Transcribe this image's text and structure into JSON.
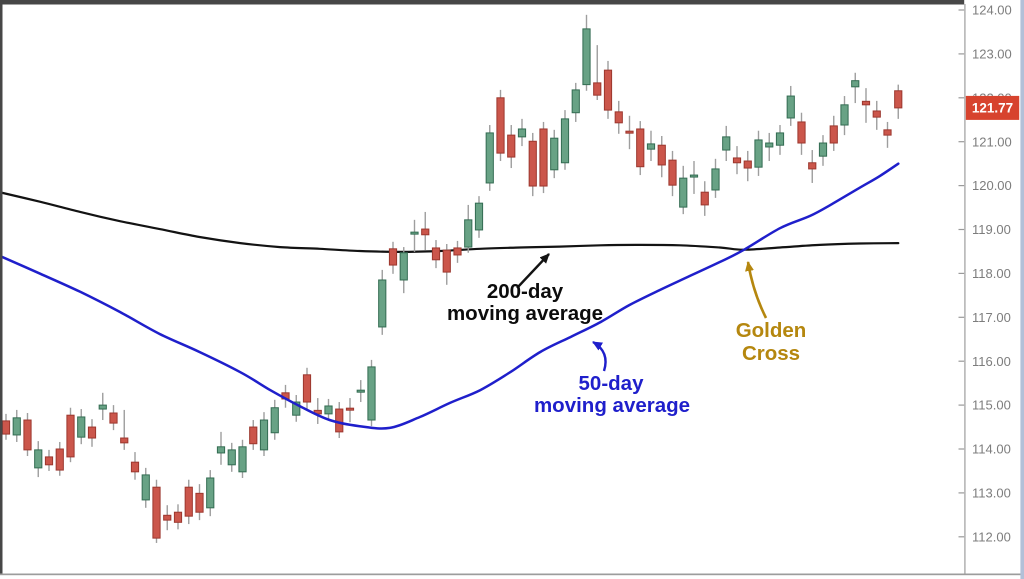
{
  "figure": {
    "description": "Candlestick price chart showing a Golden Cross where the 50-day moving average crosses above the 200-day moving average"
  },
  "chart_data": {
    "type": "candlestick",
    "grid": false,
    "y_axis": {
      "side": "right",
      "min": 111.0,
      "max": 124.15,
      "ticks": [
        {
          "label": "124.00",
          "value": 124
        },
        {
          "label": "123.00",
          "value": 123
        },
        {
          "label": "122.00",
          "value": 122
        },
        {
          "label": "121.00",
          "value": 121
        },
        {
          "label": "120.00",
          "value": 120
        },
        {
          "label": "119.00",
          "value": 119
        },
        {
          "label": "118.00",
          "value": 118
        },
        {
          "label": "117.00",
          "value": 117
        },
        {
          "label": "116.00",
          "value": 116
        },
        {
          "label": "115.00",
          "value": 115
        },
        {
          "label": "114.00",
          "value": 114
        },
        {
          "label": "113.00",
          "value": 113
        },
        {
          "label": "112.00",
          "value": 112
        }
      ]
    },
    "last_price": {
      "label": "121.77",
      "value": 121.77
    },
    "candles": [
      [
        114.64,
        114.8,
        114.21,
        114.34
      ],
      [
        114.32,
        114.89,
        114.16,
        114.71
      ],
      [
        114.66,
        114.82,
        113.84,
        113.98
      ],
      [
        113.57,
        114.18,
        113.36,
        113.98
      ],
      [
        113.82,
        113.98,
        113.5,
        113.64
      ],
      [
        114.0,
        114.16,
        113.39,
        113.52
      ],
      [
        114.77,
        114.94,
        113.7,
        113.82
      ],
      [
        114.27,
        114.91,
        114.11,
        114.73
      ],
      [
        114.5,
        114.68,
        114.05,
        114.25
      ],
      [
        114.91,
        115.28,
        114.66,
        115.0
      ],
      [
        114.82,
        115.0,
        114.43,
        114.59
      ],
      [
        114.25,
        114.89,
        113.98,
        114.14
      ],
      [
        113.7,
        113.93,
        113.3,
        113.48
      ],
      [
        112.84,
        113.57,
        112.66,
        113.41
      ],
      [
        113.13,
        113.3,
        111.86,
        111.97
      ],
      [
        112.49,
        112.72,
        112.15,
        112.38
      ],
      [
        112.56,
        112.74,
        112.17,
        112.33
      ],
      [
        113.13,
        113.3,
        112.29,
        112.47
      ],
      [
        112.99,
        113.2,
        112.38,
        112.56
      ],
      [
        112.66,
        113.52,
        112.47,
        113.34
      ],
      [
        113.91,
        114.39,
        113.64,
        114.05
      ],
      [
        113.64,
        114.14,
        113.48,
        113.98
      ],
      [
        113.48,
        114.21,
        113.34,
        114.05
      ],
      [
        114.5,
        114.66,
        113.98,
        114.12
      ],
      [
        113.98,
        114.84,
        113.84,
        114.66
      ],
      [
        114.37,
        115.12,
        114.21,
        114.94
      ],
      [
        115.28,
        115.46,
        114.94,
        115.14
      ],
      [
        114.77,
        115.23,
        114.62,
        115.07
      ],
      [
        115.69,
        115.85,
        114.89,
        115.07
      ],
      [
        114.88,
        115.16,
        114.57,
        114.8
      ],
      [
        114.8,
        115.14,
        114.66,
        114.98
      ],
      [
        114.91,
        115.07,
        114.25,
        114.39
      ],
      [
        114.93,
        115.16,
        114.61,
        114.89
      ],
      [
        115.3,
        115.57,
        115.07,
        115.34
      ],
      [
        114.66,
        116.03,
        114.52,
        115.87
      ],
      [
        116.78,
        118.08,
        116.6,
        117.85
      ],
      [
        118.56,
        118.72,
        117.99,
        118.19
      ],
      [
        117.85,
        118.6,
        117.55,
        118.47
      ],
      [
        118.9,
        119.22,
        118.49,
        118.94
      ],
      [
        119.01,
        119.4,
        118.53,
        118.88
      ],
      [
        118.58,
        118.76,
        118.12,
        118.31
      ],
      [
        118.53,
        118.67,
        117.74,
        118.03
      ],
      [
        118.58,
        118.74,
        118.24,
        118.42
      ],
      [
        118.6,
        119.56,
        118.47,
        119.22
      ],
      [
        118.99,
        119.76,
        118.81,
        119.6
      ],
      [
        120.06,
        121.38,
        119.88,
        121.2
      ],
      [
        122.0,
        122.18,
        120.56,
        120.74
      ],
      [
        121.15,
        121.38,
        120.4,
        120.65
      ],
      [
        121.11,
        121.52,
        120.9,
        121.29
      ],
      [
        121.01,
        121.2,
        119.76,
        119.99
      ],
      [
        121.29,
        121.45,
        119.83,
        119.99
      ],
      [
        120.36,
        121.27,
        120.17,
        121.08
      ],
      [
        120.52,
        121.72,
        120.36,
        121.52
      ],
      [
        121.66,
        122.34,
        121.45,
        122.18
      ],
      [
        122.3,
        123.89,
        122.16,
        123.57
      ],
      [
        122.34,
        123.2,
        121.95,
        122.06
      ],
      [
        122.63,
        122.84,
        121.52,
        121.72
      ],
      [
        121.68,
        121.93,
        121.18,
        121.43
      ],
      [
        121.24,
        121.59,
        120.83,
        121.2
      ],
      [
        121.29,
        121.47,
        120.24,
        120.43
      ],
      [
        120.83,
        121.25,
        120.56,
        120.95
      ],
      [
        120.92,
        121.13,
        120.19,
        120.47
      ],
      [
        120.58,
        120.79,
        119.76,
        120.01
      ],
      [
        119.51,
        120.45,
        119.35,
        120.17
      ],
      [
        120.2,
        120.56,
        119.81,
        120.24
      ],
      [
        119.85,
        120.1,
        119.31,
        119.56
      ],
      [
        119.9,
        120.61,
        119.72,
        120.38
      ],
      [
        120.81,
        121.36,
        120.56,
        121.11
      ],
      [
        120.63,
        120.9,
        120.26,
        120.52
      ],
      [
        120.56,
        120.79,
        120.1,
        120.4
      ],
      [
        120.42,
        121.25,
        120.22,
        121.04
      ],
      [
        120.88,
        121.2,
        120.56,
        120.97
      ],
      [
        120.92,
        121.38,
        120.7,
        121.2
      ],
      [
        121.54,
        122.27,
        121.36,
        122.04
      ],
      [
        121.45,
        121.66,
        120.7,
        120.97
      ],
      [
        120.52,
        120.81,
        120.06,
        120.38
      ],
      [
        120.67,
        121.15,
        120.45,
        120.97
      ],
      [
        121.36,
        121.59,
        120.79,
        120.97
      ],
      [
        121.38,
        122.04,
        121.15,
        121.84
      ],
      [
        122.25,
        122.57,
        121.88,
        122.39
      ],
      [
        121.92,
        122.22,
        121.43,
        121.84
      ],
      [
        121.7,
        121.93,
        121.27,
        121.56
      ],
      [
        121.27,
        121.45,
        120.86,
        121.15
      ],
      [
        122.16,
        122.3,
        121.52,
        121.77
      ]
    ],
    "ma200": {
      "name": "200-day moving average",
      "label_lines": [
        "200-day",
        "moving average"
      ],
      "color": "#131313",
      "points": [
        [
          -0.6,
          119.85
        ],
        [
          3.2,
          119.63
        ],
        [
          6.9,
          119.4
        ],
        [
          10.6,
          119.19
        ],
        [
          14.3,
          119.01
        ],
        [
          18.0,
          118.83
        ],
        [
          21.8,
          118.69
        ],
        [
          25.5,
          118.6
        ],
        [
          29.2,
          118.56
        ],
        [
          32.9,
          118.51
        ],
        [
          36.7,
          118.49
        ],
        [
          40.4,
          118.51
        ],
        [
          44.1,
          118.56
        ],
        [
          47.8,
          118.59
        ],
        [
          51.5,
          118.61
        ],
        [
          55.3,
          118.64
        ],
        [
          59.0,
          118.65
        ],
        [
          62.7,
          118.64
        ],
        [
          66.4,
          118.59
        ],
        [
          68.6,
          118.54
        ],
        [
          72.0,
          118.59
        ],
        [
          75.7,
          118.65
        ],
        [
          79.4,
          118.68
        ],
        [
          83.0,
          118.69
        ]
      ]
    },
    "ma50": {
      "name": "50-day moving average",
      "label_lines": [
        "50-day",
        "moving average"
      ],
      "color": "#1f1fcb",
      "points": [
        [
          -0.6,
          118.4
        ],
        [
          3.2,
          117.99
        ],
        [
          6.9,
          117.58
        ],
        [
          10.6,
          117.12
        ],
        [
          14.3,
          116.62
        ],
        [
          18.0,
          116.21
        ],
        [
          21.8,
          115.75
        ],
        [
          24.6,
          115.34
        ],
        [
          27.3,
          114.98
        ],
        [
          30.1,
          114.66
        ],
        [
          32.9,
          114.52
        ],
        [
          35.7,
          114.48
        ],
        [
          38.5,
          114.73
        ],
        [
          41.3,
          115.05
        ],
        [
          44.1,
          115.34
        ],
        [
          46.9,
          115.75
        ],
        [
          49.7,
          116.21
        ],
        [
          52.5,
          116.55
        ],
        [
          55.3,
          116.89
        ],
        [
          58.0,
          117.28
        ],
        [
          60.8,
          117.62
        ],
        [
          63.6,
          117.94
        ],
        [
          66.4,
          118.26
        ],
        [
          68.6,
          118.53
        ],
        [
          72.0,
          119.03
        ],
        [
          74.8,
          119.31
        ],
        [
          76.7,
          119.56
        ],
        [
          79.4,
          119.95
        ],
        [
          81.3,
          120.22
        ],
        [
          83.0,
          120.5
        ]
      ]
    },
    "annotations": {
      "golden_cross": {
        "label_lines": [
          "Golden",
          "Cross"
        ],
        "color": "#b5870f",
        "cross_index": 68.6,
        "cross_price": 118.53
      }
    },
    "style": {
      "up_fill": "#68a285",
      "up_border": "#336c52",
      "down_fill": "#cb564b",
      "down_border": "#9c372e",
      "wick": "#9e9e9e",
      "axis_text": "#7d7d7d",
      "axis_line": "#ababab",
      "tick_mark": "#9a9a9a",
      "tag_bg": "#d7432e",
      "tag_text": "#ffffff",
      "frame_dark": "#474747",
      "frame_bottom": "#9c9c9c",
      "right_edge": "#b2c0d8",
      "background": "#ffffff"
    }
  }
}
